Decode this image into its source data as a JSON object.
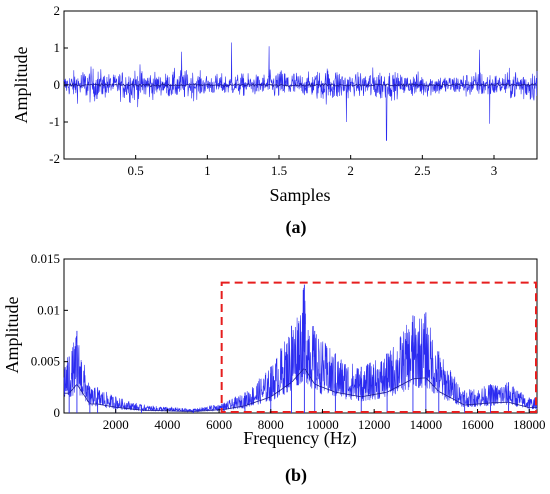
{
  "colors": {
    "signal": "#2b2bf0",
    "signal_dark": "#1a1a90",
    "highlight_box": "#e61e1e",
    "axes": "#000000"
  },
  "chart_data": [
    {
      "panel_label": "(a)",
      "type": "line",
      "title": "",
      "xlabel": "Samples",
      "ylabel": "Amplitude",
      "xlim": [
        0,
        3.3
      ],
      "ylim": [
        -2,
        2
      ],
      "xticks": [
        0.5,
        1,
        1.5,
        2,
        2.5,
        3
      ],
      "xtick_labels": [
        "0.5",
        "1",
        "1.5",
        "2",
        "2.5",
        "3"
      ],
      "yticks": [
        -2,
        -1,
        0,
        1,
        2
      ],
      "ytick_labels": [
        "-2",
        "-1",
        "0",
        "1",
        "2"
      ],
      "grid": false,
      "series": [
        {
          "description_values": "dense noise-like vibration signal oscillating about 0",
          "typical_amplitude": 0.45,
          "notable_peaks": [
            {
              "x": 1.17,
              "y": 1.15
            },
            {
              "x": 1.43,
              "y": 1.05
            },
            {
              "x": 2.25,
              "y": -1.5
            },
            {
              "x": 2.9,
              "y": 0.95
            },
            {
              "x": 2.97,
              "y": -1.05
            },
            {
              "x": 0.82,
              "y": 0.9
            },
            {
              "x": 1.97,
              "y": -1.0
            }
          ]
        }
      ]
    },
    {
      "panel_label": "(b)",
      "type": "line",
      "title": "",
      "xlabel": "Frequency (Hz)",
      "ylabel": "Amplitude",
      "xlim": [
        0,
        18300
      ],
      "ylim": [
        0,
        0.015
      ],
      "xticks": [
        2000,
        4000,
        6000,
        8000,
        10000,
        12000,
        14000,
        16000,
        18000
      ],
      "xtick_labels": [
        "2000",
        "4000",
        "6000",
        "8000",
        "10000",
        "12000",
        "14000",
        "16000",
        "18000"
      ],
      "yticks": [
        0,
        0.005,
        0.01,
        0.015
      ],
      "ytick_labels": [
        "0",
        "0.005",
        "0.01",
        "0.015"
      ],
      "grid": false,
      "series": [
        {
          "envelope_peaks": [
            {
              "x": 200,
              "y": 0.0055
            },
            {
              "x": 500,
              "y": 0.008
            },
            {
              "x": 1000,
              "y": 0.0025
            },
            {
              "x": 1300,
              "y": 0.0025
            },
            {
              "x": 2000,
              "y": 0.0016
            },
            {
              "x": 3000,
              "y": 0.0008
            },
            {
              "x": 5000,
              "y": 0.0004
            },
            {
              "x": 6200,
              "y": 0.001
            },
            {
              "x": 7000,
              "y": 0.002
            },
            {
              "x": 8000,
              "y": 0.0045
            },
            {
              "x": 8800,
              "y": 0.0085
            },
            {
              "x": 9300,
              "y": 0.0125
            },
            {
              "x": 9700,
              "y": 0.008
            },
            {
              "x": 10500,
              "y": 0.0058
            },
            {
              "x": 11500,
              "y": 0.0045
            },
            {
              "x": 12500,
              "y": 0.0058
            },
            {
              "x": 13500,
              "y": 0.0095
            },
            {
              "x": 14000,
              "y": 0.0098
            },
            {
              "x": 14500,
              "y": 0.006
            },
            {
              "x": 15500,
              "y": 0.0022
            },
            {
              "x": 16500,
              "y": 0.0028
            },
            {
              "x": 17200,
              "y": 0.003
            },
            {
              "x": 18000,
              "y": 0.0015
            }
          ]
        }
      ],
      "highlight_region": {
        "x_start": 6100,
        "x_end": 18300,
        "y_start": 0,
        "y_end": 0.0127
      }
    }
  ]
}
